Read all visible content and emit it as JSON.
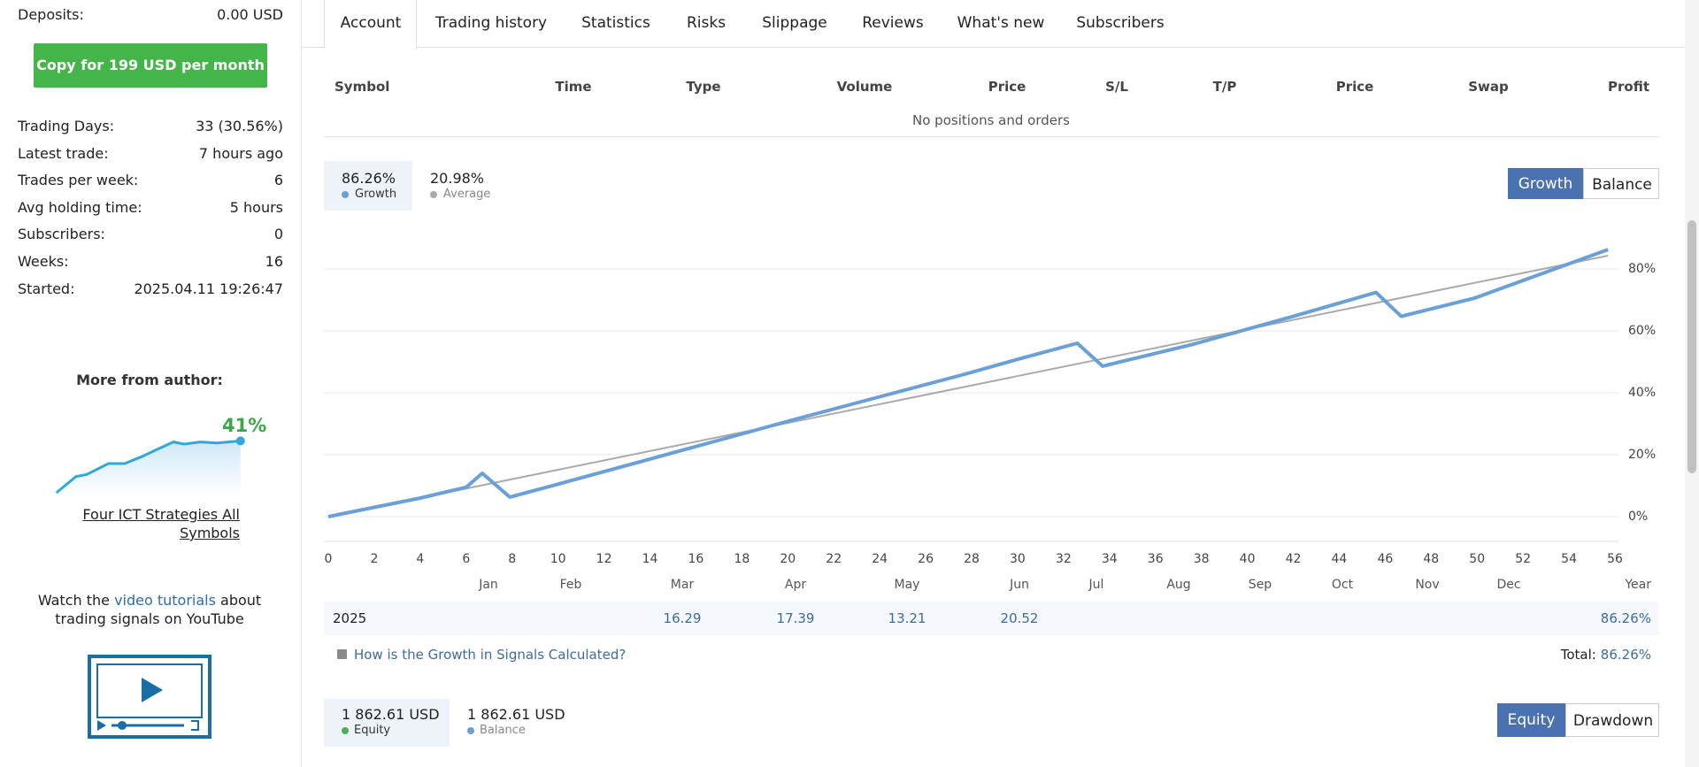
{
  "sidebar": {
    "stats": [
      {
        "label": "Deposits:",
        "value": "0.00 USD"
      },
      {
        "label": "Trading Days:",
        "value": "33 (30.56%)"
      },
      {
        "label": "Latest trade:",
        "value": "7 hours ago"
      },
      {
        "label": "Trades per week:",
        "value": "6"
      },
      {
        "label": "Avg holding time:",
        "value": "5 hours"
      },
      {
        "label": "Subscribers:",
        "value": "0"
      },
      {
        "label": "Weeks:",
        "value": "16"
      },
      {
        "label": "Started:",
        "value": "2025.04.11 19:26:47"
      }
    ],
    "copy_button": "Copy for 199 USD per month",
    "more_from_author": "More from author:",
    "author_signal": {
      "growth": "41%",
      "name": "Four ICT Strategies All Symbols"
    },
    "tutorials": {
      "before": "Watch the ",
      "link": "video tutorials",
      "after": " about trading signals on YouTube"
    }
  },
  "tabs": [
    "Account",
    "Trading history",
    "Statistics",
    "Risks",
    "Slippage",
    "Reviews",
    "What's new",
    "Subscribers"
  ],
  "active_tab": "Account",
  "positions": {
    "columns": [
      "Symbol",
      "Time",
      "Type",
      "Volume",
      "Price",
      "S/L",
      "T/P",
      "Price",
      "Swap",
      "Profit"
    ],
    "empty": "No positions and orders"
  },
  "growth_summary": [
    "86.26%",
    "20.98%"
  ],
  "chart_toggle": [
    "Growth",
    "Balance"
  ],
  "chart_data": {
    "type": "line",
    "xlim": [
      0,
      56
    ],
    "xticks": [
      0,
      2,
      4,
      6,
      8,
      10,
      12,
      14,
      16,
      18,
      20,
      22,
      24,
      26,
      28,
      30,
      32,
      34,
      36,
      38,
      40,
      42,
      44,
      46,
      48,
      50,
      52,
      54,
      56
    ],
    "ylim": [
      -8,
      92
    ],
    "yticks": [
      {
        "value": 0,
        "label": "0%"
      },
      {
        "value": 20,
        "label": "20%"
      },
      {
        "value": 40,
        "label": "40%"
      },
      {
        "value": 60,
        "label": "60%"
      },
      {
        "value": 80,
        "label": "80%"
      }
    ],
    "grid": true,
    "series": [
      {
        "name": "Growth",
        "color": "#6a9fd8",
        "x": [
          0,
          2,
          4,
          6,
          6.7,
          7.9,
          10,
          14,
          18,
          20.6,
          24,
          27.7,
          30,
          32.6,
          33.7,
          37.6,
          42,
          45.6,
          46.7,
          49.9,
          55.7
        ],
        "values": [
          0,
          3,
          6,
          9.5,
          14,
          6.3,
          10.5,
          18.6,
          26.7,
          32,
          38.7,
          46,
          50.8,
          56,
          48.6,
          55.6,
          64.7,
          72.4,
          64.7,
          70.6,
          86.26
        ]
      },
      {
        "name": "Average",
        "color": "#aaaaaa",
        "x": [
          0,
          55.7
        ],
        "values": [
          0,
          84.3
        ]
      }
    ]
  },
  "year_table": {
    "months": [
      "Jan",
      "Feb",
      "Mar",
      "Apr",
      "May",
      "Jun",
      "Jul",
      "Aug",
      "Sep",
      "Oct",
      "Nov",
      "Dec",
      "Year"
    ],
    "rows": [
      {
        "year": "2025",
        "cells": [
          null,
          null,
          "16.29",
          "17.39",
          "13.21",
          "20.52",
          null,
          null,
          null,
          null,
          null,
          null,
          "86.26%"
        ]
      }
    ]
  },
  "help_link": "How is the Growth in Signals Calculated?",
  "total": {
    "label": "Total:",
    "value": "86.26%"
  },
  "equity_summary": [
    {
      "value": "1 862.61 USD",
      "label": "Equity"
    },
    {
      "value": "1 862.61 USD",
      "label": "Balance"
    }
  ],
  "equity_toggle": [
    "Equity",
    "Drawdown"
  ]
}
